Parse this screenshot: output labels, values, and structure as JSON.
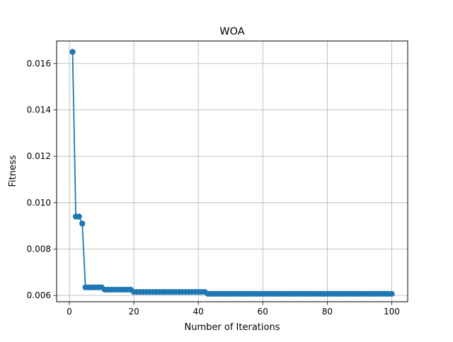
{
  "chart_data": {
    "type": "line",
    "title": "WOA",
    "xlabel": "Number of Iterations",
    "ylabel": "Fitness",
    "xlim": [
      -3.95,
      104.95
    ],
    "ylim": [
      0.00573,
      0.01697
    ],
    "xticks": [
      0,
      20,
      40,
      60,
      80,
      100
    ],
    "xtick_labels": [
      "0",
      "20",
      "40",
      "60",
      "80",
      "100"
    ],
    "yticks": [
      0.006,
      0.008,
      0.01,
      0.012,
      0.014,
      0.016
    ],
    "ytick_labels": [
      "0.006",
      "0.008",
      "0.010",
      "0.012",
      "0.014",
      "0.016"
    ],
    "grid": true,
    "legend": "none",
    "color": "#1f77b4",
    "marker": "circle",
    "x": [
      1,
      2,
      3,
      4,
      5,
      6,
      7,
      8,
      9,
      10,
      11,
      12,
      13,
      14,
      15,
      16,
      17,
      18,
      19,
      20,
      21,
      22,
      23,
      24,
      25,
      26,
      27,
      28,
      29,
      30,
      31,
      32,
      33,
      34,
      35,
      36,
      37,
      38,
      39,
      40,
      41,
      42,
      43,
      44,
      45,
      46,
      47,
      48,
      49,
      50,
      51,
      52,
      53,
      54,
      55,
      56,
      57,
      58,
      59,
      60,
      61,
      62,
      63,
      64,
      65,
      66,
      67,
      68,
      69,
      70,
      71,
      72,
      73,
      74,
      75,
      76,
      77,
      78,
      79,
      80,
      81,
      82,
      83,
      84,
      85,
      86,
      87,
      88,
      89,
      90,
      91,
      92,
      93,
      94,
      95,
      96,
      97,
      98,
      99,
      100
    ],
    "y": [
      0.0165,
      0.0094,
      0.0094,
      0.0091,
      0.00635,
      0.00635,
      0.00635,
      0.00635,
      0.00635,
      0.00635,
      0.00625,
      0.00625,
      0.00625,
      0.00625,
      0.00625,
      0.00625,
      0.00625,
      0.00625,
      0.00625,
      0.00615,
      0.00615,
      0.00615,
      0.00615,
      0.00615,
      0.00615,
      0.00615,
      0.00615,
      0.00615,
      0.00615,
      0.00615,
      0.00615,
      0.00615,
      0.00615,
      0.00615,
      0.00615,
      0.00615,
      0.00615,
      0.00615,
      0.00615,
      0.00615,
      0.00615,
      0.00615,
      0.00607,
      0.00607,
      0.00607,
      0.00607,
      0.00607,
      0.00607,
      0.00607,
      0.00607,
      0.00607,
      0.00607,
      0.00607,
      0.00607,
      0.00607,
      0.00607,
      0.00607,
      0.00607,
      0.00607,
      0.00607,
      0.00607,
      0.00607,
      0.00607,
      0.00607,
      0.00607,
      0.00607,
      0.00607,
      0.00607,
      0.00607,
      0.00607,
      0.00607,
      0.00607,
      0.00607,
      0.00607,
      0.00607,
      0.00607,
      0.00607,
      0.00607,
      0.00607,
      0.00607,
      0.00607,
      0.00607,
      0.00607,
      0.00607,
      0.00607,
      0.00607,
      0.00607,
      0.00607,
      0.00607,
      0.00607,
      0.00607,
      0.00607,
      0.00607,
      0.00607,
      0.00607,
      0.00607,
      0.00607,
      0.00607,
      0.00607,
      0.00607
    ]
  }
}
